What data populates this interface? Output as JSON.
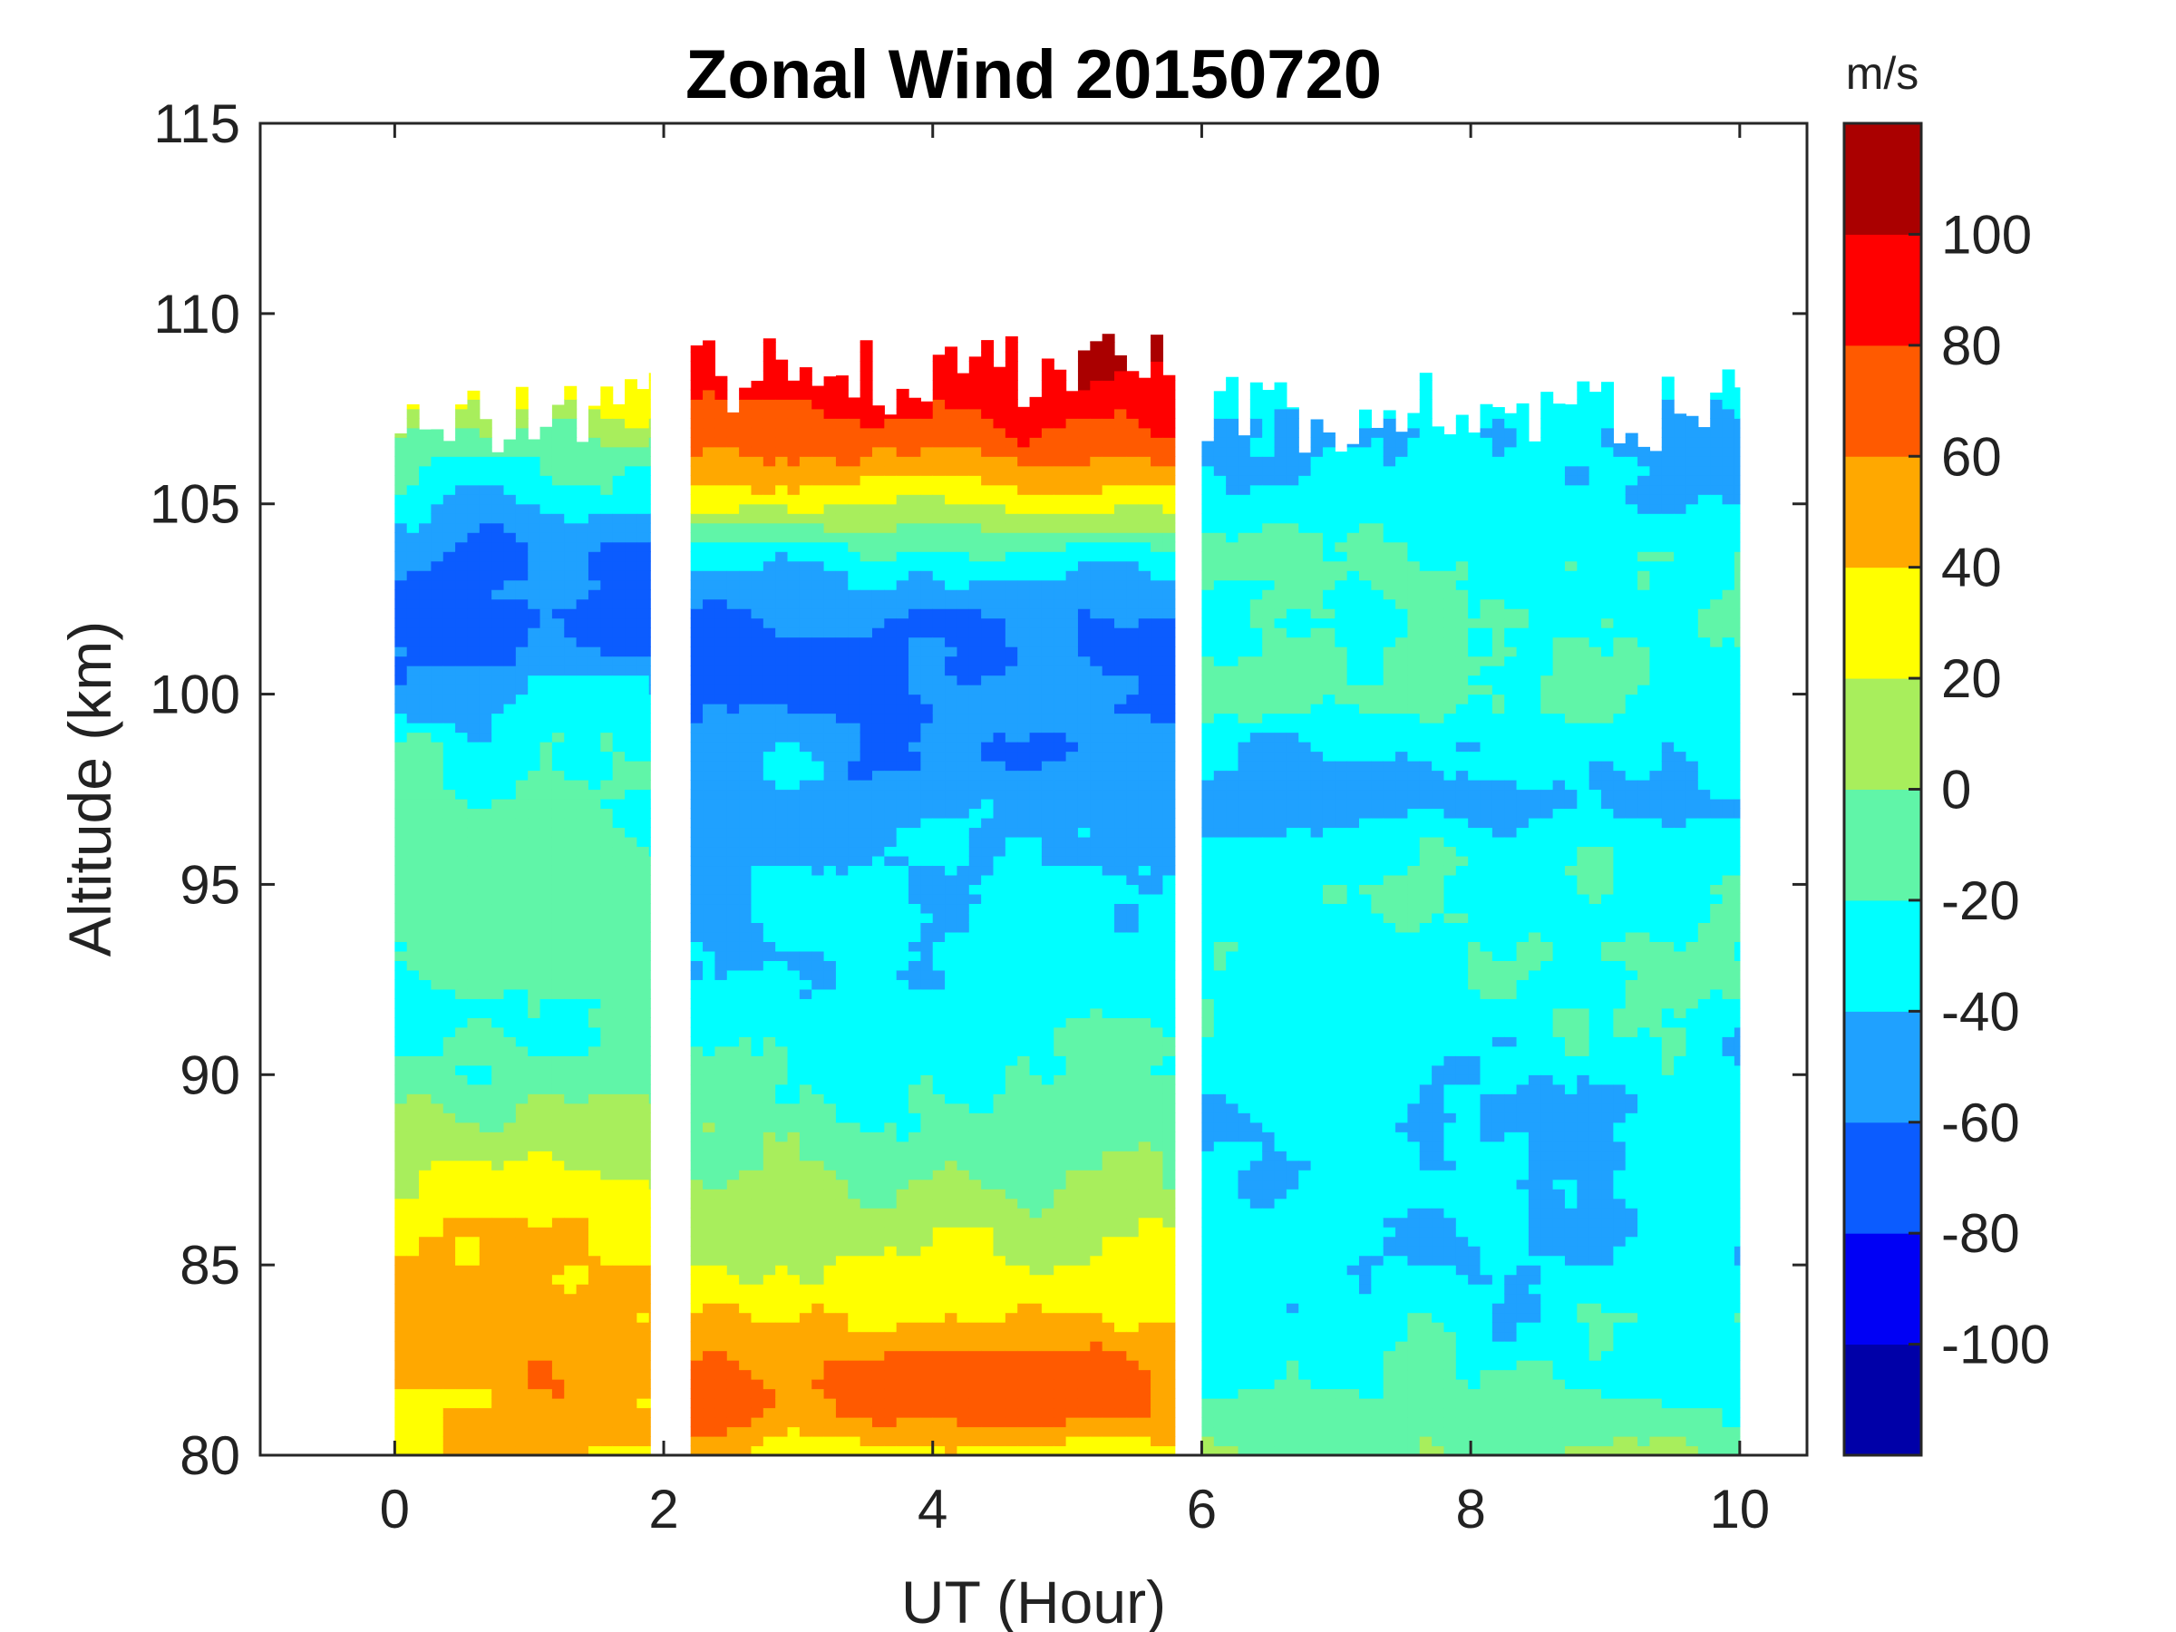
{
  "chart_data": {
    "type": "heatmap",
    "title": "Zonal Wind 20150720",
    "xlabel": "UT (Hour)",
    "ylabel": "Altitude (km)",
    "xlim": [
      -1,
      10.5
    ],
    "ylim": [
      80,
      115
    ],
    "xticks": [
      0,
      2,
      4,
      6,
      8,
      10
    ],
    "yticks": [
      80,
      85,
      90,
      95,
      100,
      105,
      110,
      115
    ],
    "colorbar": {
      "units": "m/s",
      "range": [
        -120,
        120
      ],
      "levels": [
        -120,
        -100,
        -80,
        -60,
        -40,
        -20,
        0,
        20,
        40,
        60,
        80,
        100,
        120
      ],
      "colors": [
        "#0000a8",
        "#0000f5",
        "#0b5cff",
        "#1fa1ff",
        "#00ffff",
        "#60f5a8",
        "#a8ee5c",
        "#ffff00",
        "#ffa800",
        "#ff5a00",
        "#ff0000",
        "#aa0000"
      ],
      "ticks": [
        -100,
        -80,
        -60,
        -40,
        -20,
        0,
        20,
        40,
        60,
        80,
        100
      ]
    },
    "segments": [
      {
        "x_start": 0.0,
        "x_end": 1.9,
        "alt_top": 107,
        "profile": [
          [
            80,
            38
          ],
          [
            82,
            58
          ],
          [
            84,
            42
          ],
          [
            86,
            32
          ],
          [
            87,
            18
          ],
          [
            88,
            8
          ],
          [
            89,
            2
          ],
          [
            90,
            -18
          ],
          [
            92,
            -28
          ],
          [
            93,
            -15
          ],
          [
            95,
            -10
          ],
          [
            97,
            -18
          ],
          [
            99,
            -28
          ],
          [
            100,
            -45
          ],
          [
            101,
            -55
          ],
          [
            102,
            -62
          ],
          [
            104,
            -50
          ],
          [
            105,
            -38
          ],
          [
            106,
            -25
          ],
          [
            107,
            5
          ],
          [
            108,
            35
          ]
        ]
      },
      {
        "x_start": 2.2,
        "x_end": 5.8,
        "alt_top": 108,
        "profile": [
          [
            80,
            30
          ],
          [
            81,
            62
          ],
          [
            82,
            68
          ],
          [
            83,
            55
          ],
          [
            84,
            38
          ],
          [
            85,
            22
          ],
          [
            86,
            12
          ],
          [
            87,
            5
          ],
          [
            88,
            -5
          ],
          [
            89,
            -15
          ],
          [
            90,
            -22
          ],
          [
            92,
            -30
          ],
          [
            94,
            -34
          ],
          [
            96,
            -42
          ],
          [
            98,
            -52
          ],
          [
            100,
            -62
          ],
          [
            101,
            -66
          ],
          [
            102,
            -60
          ],
          [
            103,
            -45
          ],
          [
            104,
            -15
          ],
          [
            105,
            25
          ],
          [
            106,
            55
          ],
          [
            107,
            75
          ],
          [
            108,
            90
          ]
        ]
      },
      {
        "x_start": 6.0,
        "x_end": 10.0,
        "alt_top": 107,
        "profile": [
          [
            80,
            -5
          ],
          [
            81,
            -12
          ],
          [
            82,
            -22
          ],
          [
            84,
            -28
          ],
          [
            86,
            -32
          ],
          [
            88,
            -36
          ],
          [
            89,
            -42
          ],
          [
            90,
            -34
          ],
          [
            92,
            -24
          ],
          [
            94,
            -22
          ],
          [
            96,
            -26
          ],
          [
            97,
            -45
          ],
          [
            98,
            -38
          ],
          [
            100,
            -22
          ],
          [
            102,
            -20
          ],
          [
            104,
            -24
          ],
          [
            105,
            -32
          ],
          [
            106,
            -38
          ],
          [
            107,
            -48
          ],
          [
            108,
            -30
          ]
        ]
      }
    ]
  }
}
